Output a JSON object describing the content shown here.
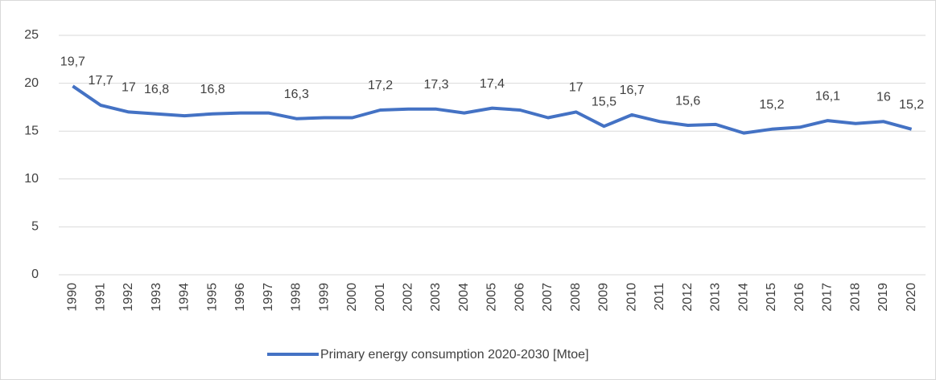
{
  "chart_data": {
    "type": "line",
    "categories": [
      "1990",
      "1991",
      "1992",
      "1993",
      "1994",
      "1995",
      "1996",
      "1997",
      "1998",
      "1999",
      "2000",
      "2001",
      "2002",
      "2003",
      "2004",
      "2005",
      "2006",
      "2007",
      "2008",
      "2009",
      "2010",
      "2011",
      "2012",
      "2013",
      "2014",
      "2015",
      "2016",
      "2017",
      "2018",
      "2019",
      "2020"
    ],
    "series": [
      {
        "name": "Primary energy consumption 2020-2030 [Mtoe]",
        "color": "#4472c4",
        "values": [
          19.7,
          17.7,
          17.0,
          16.8,
          16.6,
          16.8,
          16.9,
          16.9,
          16.3,
          16.4,
          16.4,
          17.2,
          17.3,
          17.3,
          16.9,
          17.4,
          17.2,
          16.4,
          17.0,
          15.5,
          16.7,
          16.0,
          15.6,
          15.7,
          14.8,
          15.2,
          15.4,
          16.1,
          15.8,
          16.0,
          15.2
        ],
        "value_labels": [
          "19,7",
          "17,7",
          "17",
          "16,8",
          null,
          "16,8",
          null,
          null,
          "16,3",
          null,
          null,
          "17,2",
          null,
          "17,3",
          null,
          "17,4",
          null,
          null,
          "17",
          "15,5",
          "16,7",
          null,
          "15,6",
          null,
          null,
          "15,2",
          null,
          "16,1",
          null,
          "16",
          "15,2"
        ]
      }
    ],
    "ylim": [
      0,
      25
    ],
    "yticks": [
      0,
      5,
      10,
      15,
      20,
      25
    ],
    "grid": true,
    "legend": "bottom"
  }
}
